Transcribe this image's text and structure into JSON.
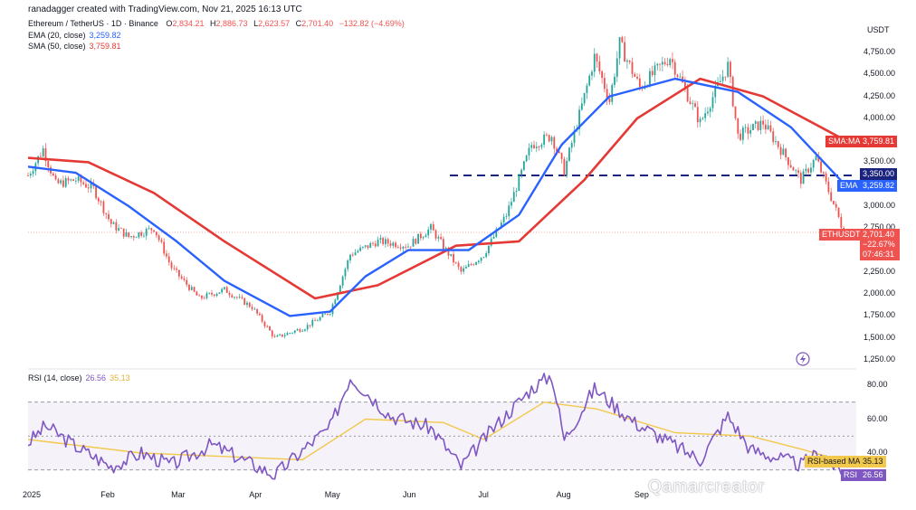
{
  "header": {
    "credit": "ranadagger created with TradingView.com, Nov 21, 2025 16:13 UTC",
    "symbol_line_label": "Ethereum / TetherUS · 1D · Binance",
    "ohlc": {
      "o_label": "O",
      "o": "2,834.21",
      "h_label": "H",
      "h": "2,886.73",
      "l_label": "L",
      "l": "2,623.57",
      "c_label": "C",
      "c": "2,701.40",
      "change": "−132.82 (−4.69%)"
    },
    "ema_label": "EMA (20, close)",
    "ema_value": "3,259.82",
    "sma_label": "SMA (50, close)",
    "sma_value": "3,759.81",
    "rsi_label": "RSI (14, close)",
    "rsi_value": "26.56",
    "rsi_ma_value": "35.13"
  },
  "currency": "USDT",
  "price_axis_labels": [
    "4,750.00",
    "4,500.00",
    "4,250.00",
    "4,000.00",
    "3,750.00",
    "3,500.00",
    "3,000.00",
    "2,750.00",
    "2,500.00",
    "2,250.00",
    "2,000.00",
    "1,750.00",
    "1,500.00",
    "1,250.00"
  ],
  "rsi_axis_labels": [
    "80.00",
    "60.00",
    "40.00"
  ],
  "tags": {
    "sma_name": "SMA:MA",
    "sma_value": "3,759.81",
    "level_value": "3,350.00",
    "ema_name": "EMA",
    "ema_value": "3,259.82",
    "symbol_name": "ETHUSDT",
    "last_price": "2,701.40",
    "change_pct": "−22.67%",
    "countdown": "07:46:31",
    "rsi_ma_name": "RSI-based MA",
    "rsi_ma_value": "35.13",
    "rsi_name": "RSI",
    "rsi_value": "26.56"
  },
  "x_labels": [
    "2025",
    "Feb",
    "Mar",
    "Apr",
    "May",
    "Jun",
    "Jul",
    "Aug",
    "Sep"
  ],
  "watermark": "Qamarcreator",
  "colors": {
    "up": "#26a69a",
    "down": "#ef5350",
    "ema": "#2962ff",
    "sma": "#e53935",
    "level": "#1a237e",
    "rsi": "#7e57c2",
    "rsi_ma": "#f2c94c",
    "last_price": "#ef5350"
  },
  "chart_data": [
    {
      "type": "candlestick",
      "title": "Ethereum / TetherUS · 1D · Binance",
      "ylim": [
        1250,
        4900
      ],
      "horizontal_level": 3350,
      "last_close": 2701.4,
      "x_ticks": [
        "2025",
        "Feb",
        "Mar",
        "Apr",
        "May",
        "Jun",
        "Jul",
        "Aug",
        "Sep"
      ],
      "close_path": [
        {
          "date": "2025-01-01",
          "close": 3350
        },
        {
          "date": "2025-01-07",
          "close": 3650
        },
        {
          "date": "2025-01-12",
          "close": 3250
        },
        {
          "date": "2025-01-20",
          "close": 3300
        },
        {
          "date": "2025-01-27",
          "close": 3200
        },
        {
          "date": "2025-02-03",
          "close": 2800
        },
        {
          "date": "2025-02-10",
          "close": 2650
        },
        {
          "date": "2025-02-20",
          "close": 2750
        },
        {
          "date": "2025-02-27",
          "close": 2300
        },
        {
          "date": "2025-03-10",
          "close": 1950
        },
        {
          "date": "2025-03-20",
          "close": 2050
        },
        {
          "date": "2025-03-31",
          "close": 1850
        },
        {
          "date": "2025-04-09",
          "close": 1500
        },
        {
          "date": "2025-04-21",
          "close": 1620
        },
        {
          "date": "2025-05-01",
          "close": 1800
        },
        {
          "date": "2025-05-09",
          "close": 2450
        },
        {
          "date": "2025-05-20",
          "close": 2600
        },
        {
          "date": "2025-06-01",
          "close": 2550
        },
        {
          "date": "2025-06-10",
          "close": 2750
        },
        {
          "date": "2025-06-22",
          "close": 2250
        },
        {
          "date": "2025-07-01",
          "close": 2450
        },
        {
          "date": "2025-07-10",
          "close": 2900
        },
        {
          "date": "2025-07-20",
          "close": 3700
        },
        {
          "date": "2025-07-28",
          "close": 3800
        },
        {
          "date": "2025-08-02",
          "close": 3400
        },
        {
          "date": "2025-08-10",
          "close": 4250
        },
        {
          "date": "2025-08-14",
          "close": 4700
        },
        {
          "date": "2025-08-20",
          "close": 4200
        },
        {
          "date": "2025-08-24",
          "close": 4850
        },
        {
          "date": "2025-09-01",
          "close": 4350
        },
        {
          "date": "2025-09-13",
          "close": 4700
        },
        {
          "date": "2025-09-25",
          "close": 3950
        },
        {
          "date": "2025-10-06",
          "close": 4600
        },
        {
          "date": "2025-10-10",
          "close": 3800
        },
        {
          "date": "2025-10-20",
          "close": 3950
        },
        {
          "date": "2025-11-04",
          "close": 3300
        },
        {
          "date": "2025-11-10",
          "close": 3550
        },
        {
          "date": "2025-11-18",
          "close": 2950
        },
        {
          "date": "2025-11-21",
          "close": 2701.4
        }
      ],
      "series": [
        {
          "name": "EMA (20, close)",
          "last": 3259.82,
          "points": [
            {
              "date": "2025-01-01",
              "value": 3450
            },
            {
              "date": "2025-01-20",
              "value": 3380
            },
            {
              "date": "2025-02-10",
              "value": 3000
            },
            {
              "date": "2025-03-01",
              "value": 2600
            },
            {
              "date": "2025-03-20",
              "value": 2150
            },
            {
              "date": "2025-04-15",
              "value": 1750
            },
            {
              "date": "2025-05-01",
              "value": 1800
            },
            {
              "date": "2025-05-15",
              "value": 2200
            },
            {
              "date": "2025-06-01",
              "value": 2500
            },
            {
              "date": "2025-06-25",
              "value": 2500
            },
            {
              "date": "2025-07-15",
              "value": 2900
            },
            {
              "date": "2025-08-01",
              "value": 3700
            },
            {
              "date": "2025-08-20",
              "value": 4250
            },
            {
              "date": "2025-09-15",
              "value": 4450
            },
            {
              "date": "2025-10-10",
              "value": 4300
            },
            {
              "date": "2025-10-31",
              "value": 3900
            },
            {
              "date": "2025-11-21",
              "value": 3259.82
            }
          ]
        },
        {
          "name": "SMA (50, close)",
          "last": 3759.81,
          "points": [
            {
              "date": "2025-01-01",
              "value": 3550
            },
            {
              "date": "2025-01-25",
              "value": 3500
            },
            {
              "date": "2025-02-20",
              "value": 3150
            },
            {
              "date": "2025-03-20",
              "value": 2600
            },
            {
              "date": "2025-04-25",
              "value": 1950
            },
            {
              "date": "2025-05-20",
              "value": 2100
            },
            {
              "date": "2025-06-20",
              "value": 2550
            },
            {
              "date": "2025-07-15",
              "value": 2600
            },
            {
              "date": "2025-08-10",
              "value": 3300
            },
            {
              "date": "2025-08-31",
              "value": 4000
            },
            {
              "date": "2025-09-25",
              "value": 4450
            },
            {
              "date": "2025-10-20",
              "value": 4250
            },
            {
              "date": "2025-11-21",
              "value": 3759.81
            }
          ]
        }
      ]
    },
    {
      "type": "line",
      "title": "RSI (14, close)",
      "ylim": [
        24,
        88
      ],
      "y_ticks": [
        40,
        60,
        80
      ],
      "bands": [
        70,
        50,
        30
      ],
      "series": [
        {
          "name": "RSI",
          "last": 26.56,
          "points": [
            {
              "date": "2025-01-01",
              "value": 46
            },
            {
              "date": "2025-01-08",
              "value": 56
            },
            {
              "date": "2025-01-20",
              "value": 44
            },
            {
              "date": "2025-02-03",
              "value": 32
            },
            {
              "date": "2025-02-15",
              "value": 40
            },
            {
              "date": "2025-02-27",
              "value": 33
            },
            {
              "date": "2025-03-15",
              "value": 45
            },
            {
              "date": "2025-04-09",
              "value": 27
            },
            {
              "date": "2025-04-25",
              "value": 48
            },
            {
              "date": "2025-05-01",
              "value": 55
            },
            {
              "date": "2025-05-09",
              "value": 85
            },
            {
              "date": "2025-05-25",
              "value": 62
            },
            {
              "date": "2025-06-10",
              "value": 55
            },
            {
              "date": "2025-06-22",
              "value": 32
            },
            {
              "date": "2025-07-05",
              "value": 55
            },
            {
              "date": "2025-07-20",
              "value": 78
            },
            {
              "date": "2025-07-28",
              "value": 86
            },
            {
              "date": "2025-08-02",
              "value": 48
            },
            {
              "date": "2025-08-14",
              "value": 78
            },
            {
              "date": "2025-08-30",
              "value": 58
            },
            {
              "date": "2025-09-25",
              "value": 36
            },
            {
              "date": "2025-10-06",
              "value": 62
            },
            {
              "date": "2025-10-15",
              "value": 42
            },
            {
              "date": "2025-11-04",
              "value": 33
            },
            {
              "date": "2025-11-12",
              "value": 41
            },
            {
              "date": "2025-11-21",
              "value": 26.56
            }
          ]
        },
        {
          "name": "RSI-based MA",
          "last": 35.13,
          "points": [
            {
              "date": "2025-01-01",
              "value": 48
            },
            {
              "date": "2025-02-15",
              "value": 40
            },
            {
              "date": "2025-03-20",
              "value": 38
            },
            {
              "date": "2025-04-20",
              "value": 36
            },
            {
              "date": "2025-05-15",
              "value": 60
            },
            {
              "date": "2025-06-15",
              "value": 58
            },
            {
              "date": "2025-07-01",
              "value": 48
            },
            {
              "date": "2025-07-25",
              "value": 70
            },
            {
              "date": "2025-08-15",
              "value": 66
            },
            {
              "date": "2025-09-15",
              "value": 52
            },
            {
              "date": "2025-10-15",
              "value": 50
            },
            {
              "date": "2025-11-05",
              "value": 42
            },
            {
              "date": "2025-11-21",
              "value": 35.13
            }
          ]
        }
      ]
    }
  ]
}
